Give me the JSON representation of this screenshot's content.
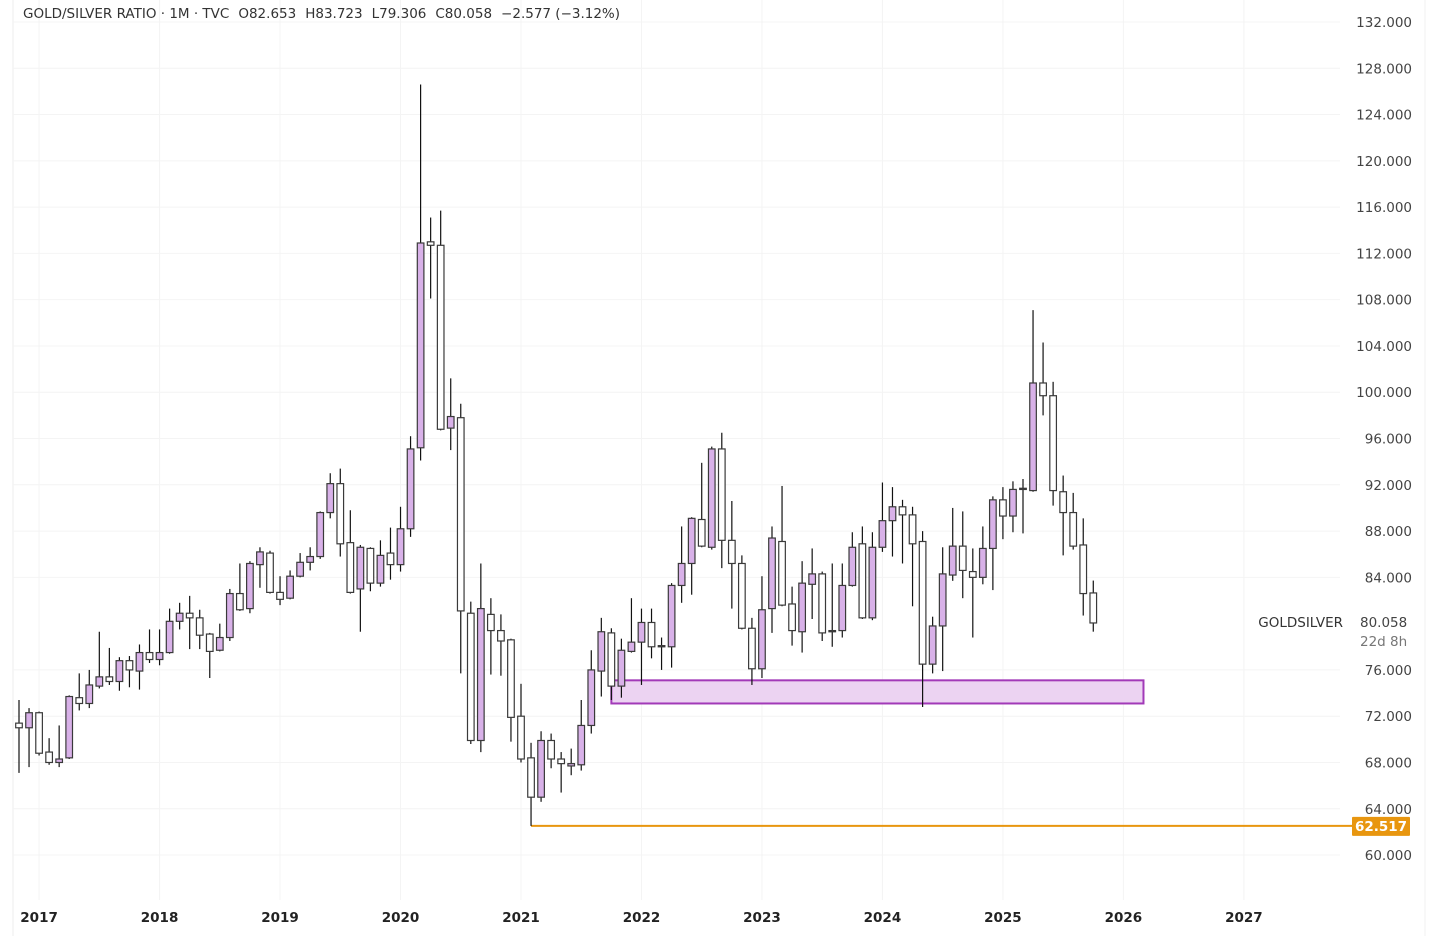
{
  "header": {
    "symbol": "GOLD/SILVER RATIO · 1M · TVC",
    "open": "O82.653",
    "high": "H83.723",
    "low": "L79.306",
    "close": "C80.058",
    "change": "−2.577 (−3.12%)"
  },
  "colors": {
    "up_fill": "#d8b1e8",
    "down_fill": "#ffffff",
    "outline": "#3a3a3a",
    "zone": "#a23ab8",
    "zone_fill": "#ecd3f2",
    "level": "#e8960f"
  },
  "chart_data": {
    "type": "candlestick",
    "title": "GOLD/SILVER RATIO · 1M · TVC",
    "interval": "1M",
    "first_month": "2016-11",
    "candle_format": [
      "open",
      "high",
      "low",
      "close"
    ],
    "candles": [
      [
        71.4,
        73.4,
        67.1,
        71.0
      ],
      [
        71.0,
        72.7,
        67.6,
        72.3
      ],
      [
        72.3,
        72.4,
        68.6,
        68.8
      ],
      [
        68.9,
        70.1,
        67.8,
        68.0
      ],
      [
        68.0,
        71.2,
        67.6,
        68.3
      ],
      [
        68.4,
        73.8,
        68.3,
        73.7
      ],
      [
        73.6,
        75.7,
        72.5,
        73.1
      ],
      [
        73.1,
        76.0,
        72.7,
        74.7
      ],
      [
        74.6,
        79.3,
        74.4,
        75.4
      ],
      [
        75.4,
        77.9,
        74.7,
        75.0
      ],
      [
        75.0,
        77.1,
        74.2,
        76.8
      ],
      [
        76.8,
        77.2,
        74.5,
        76.0
      ],
      [
        75.9,
        78.2,
        74.3,
        77.5
      ],
      [
        77.5,
        79.5,
        76.6,
        76.9
      ],
      [
        76.9,
        79.5,
        76.4,
        77.5
      ],
      [
        77.5,
        81.3,
        77.4,
        80.2
      ],
      [
        80.2,
        81.8,
        79.5,
        80.9
      ],
      [
        80.9,
        82.4,
        77.8,
        80.5
      ],
      [
        80.5,
        81.2,
        77.8,
        79.0
      ],
      [
        79.1,
        79.2,
        75.3,
        77.6
      ],
      [
        77.7,
        80.0,
        77.6,
        78.8
      ],
      [
        78.8,
        83.0,
        78.5,
        82.6
      ],
      [
        82.6,
        85.2,
        81.1,
        81.2
      ],
      [
        81.3,
        85.4,
        80.9,
        85.2
      ],
      [
        85.1,
        86.6,
        83.1,
        86.2
      ],
      [
        86.1,
        86.3,
        82.6,
        82.7
      ],
      [
        82.7,
        84.1,
        81.6,
        82.1
      ],
      [
        82.2,
        84.6,
        82.1,
        84.1
      ],
      [
        84.1,
        86.1,
        84.0,
        85.3
      ],
      [
        85.3,
        86.6,
        84.6,
        85.8
      ],
      [
        85.8,
        89.7,
        85.6,
        89.6
      ],
      [
        89.6,
        93.0,
        89.1,
        92.1
      ],
      [
        92.1,
        93.4,
        85.8,
        86.9
      ],
      [
        87.0,
        89.8,
        82.6,
        82.7
      ],
      [
        83.0,
        86.8,
        79.3,
        86.6
      ],
      [
        86.5,
        86.6,
        82.8,
        83.5
      ],
      [
        83.5,
        87.2,
        83.2,
        85.9
      ],
      [
        86.1,
        88.3,
        83.8,
        85.1
      ],
      [
        85.1,
        90.1,
        84.5,
        88.2
      ],
      [
        88.2,
        96.2,
        87.5,
        95.1
      ],
      [
        95.2,
        126.6,
        94.1,
        112.9
      ],
      [
        113.0,
        115.1,
        108.1,
        112.7
      ],
      [
        112.7,
        115.7,
        96.7,
        96.8
      ],
      [
        96.9,
        101.2,
        95.0,
        97.9
      ],
      [
        97.8,
        99.0,
        75.7,
        81.1
      ],
      [
        80.9,
        81.9,
        69.6,
        69.9
      ],
      [
        69.9,
        85.2,
        68.9,
        81.3
      ],
      [
        80.8,
        82.2,
        75.6,
        79.4
      ],
      [
        79.4,
        80.8,
        75.5,
        78.5
      ],
      [
        78.6,
        78.7,
        69.8,
        71.9
      ],
      [
        72.0,
        74.8,
        68.0,
        68.3
      ],
      [
        68.4,
        69.7,
        62.517,
        65.0
      ],
      [
        65.0,
        70.7,
        64.6,
        69.9
      ],
      [
        69.9,
        70.5,
        67.5,
        68.3
      ],
      [
        68.3,
        68.9,
        65.4,
        67.9
      ],
      [
        67.7,
        69.2,
        66.9,
        67.9
      ],
      [
        67.8,
        73.4,
        67.3,
        71.2
      ],
      [
        71.2,
        77.7,
        70.5,
        76.0
      ],
      [
        75.9,
        80.5,
        73.7,
        79.3
      ],
      [
        79.2,
        79.6,
        73.4,
        74.6
      ],
      [
        74.6,
        78.7,
        73.6,
        77.7
      ],
      [
        77.6,
        82.2,
        77.5,
        78.4
      ],
      [
        78.4,
        81.3,
        74.7,
        80.1
      ],
      [
        80.1,
        81.3,
        77.0,
        78.0
      ],
      [
        78.1,
        78.8,
        76.0,
        78.0
      ],
      [
        78.0,
        83.5,
        76.2,
        83.3
      ],
      [
        83.3,
        88.4,
        81.8,
        85.2
      ],
      [
        85.2,
        89.2,
        82.5,
        89.1
      ],
      [
        89.0,
        93.9,
        86.6,
        86.7
      ],
      [
        86.6,
        95.3,
        86.4,
        95.1
      ],
      [
        95.1,
        96.5,
        84.8,
        87.2
      ],
      [
        87.2,
        90.6,
        81.3,
        85.2
      ],
      [
        85.2,
        85.9,
        79.5,
        79.6
      ],
      [
        79.6,
        80.5,
        74.7,
        76.1
      ],
      [
        76.1,
        84.1,
        75.3,
        81.2
      ],
      [
        81.3,
        88.4,
        79.2,
        87.4
      ],
      [
        87.1,
        91.9,
        81.5,
        81.6
      ],
      [
        81.7,
        83.2,
        78.1,
        79.4
      ],
      [
        79.3,
        85.4,
        77.5,
        83.5
      ],
      [
        83.4,
        86.5,
        80.4,
        84.3
      ],
      [
        84.3,
        84.5,
        78.5,
        79.2
      ],
      [
        79.4,
        85.2,
        78.0,
        79.4
      ],
      [
        79.4,
        85.2,
        78.8,
        83.3
      ],
      [
        83.3,
        87.9,
        83.2,
        86.6
      ],
      [
        86.9,
        88.4,
        80.4,
        80.5
      ],
      [
        80.5,
        87.9,
        80.3,
        86.6
      ],
      [
        86.6,
        92.2,
        86.2,
        88.9
      ],
      [
        88.9,
        91.8,
        85.8,
        90.1
      ],
      [
        90.1,
        90.7,
        85.2,
        89.4
      ],
      [
        89.4,
        90.1,
        81.5,
        86.9
      ],
      [
        87.1,
        88.0,
        72.8,
        76.5
      ],
      [
        76.5,
        80.6,
        75.7,
        79.8
      ],
      [
        79.8,
        86.6,
        75.9,
        84.3
      ],
      [
        84.2,
        90.0,
        83.7,
        86.7
      ],
      [
        86.7,
        89.7,
        82.2,
        84.6
      ],
      [
        84.5,
        86.5,
        78.8,
        84.0
      ],
      [
        84.0,
        88.4,
        83.4,
        86.5
      ],
      [
        86.5,
        91.0,
        82.9,
        90.7
      ],
      [
        90.7,
        91.8,
        87.3,
        89.3
      ],
      [
        89.3,
        92.3,
        87.9,
        91.6
      ],
      [
        91.7,
        92.5,
        87.8,
        91.6
      ],
      [
        91.5,
        107.1,
        91.4,
        100.8
      ],
      [
        100.8,
        104.3,
        98.0,
        99.7
      ],
      [
        99.7,
        100.9,
        90.2,
        91.5
      ],
      [
        91.4,
        92.8,
        85.9,
        89.6
      ],
      [
        89.6,
        91.3,
        86.4,
        86.7
      ],
      [
        86.8,
        89.1,
        80.7,
        82.6
      ],
      [
        82.653,
        83.723,
        79.306,
        80.058
      ]
    ],
    "y_ticks": [
      "132.000",
      "128.000",
      "124.000",
      "120.000",
      "116.000",
      "112.000",
      "108.000",
      "104.000",
      "100.000",
      "96.000",
      "92.000",
      "88.000",
      "84.000",
      "76.000",
      "72.000",
      "68.000",
      "64.000",
      "60.000"
    ],
    "y_tick_values": [
      132,
      128,
      124,
      120,
      116,
      112,
      108,
      104,
      100,
      96,
      92,
      88,
      84,
      76,
      72,
      68,
      64,
      60
    ],
    "ylim": [
      60,
      132
    ],
    "x_ticks": [
      "2017",
      "2018",
      "2019",
      "2020",
      "2021",
      "2022",
      "2023",
      "2024",
      "2025",
      "2026",
      "2027"
    ],
    "x_tick_candle_index": [
      2,
      14,
      26,
      38,
      50,
      62,
      74,
      86,
      98,
      110,
      122
    ],
    "support_zone": {
      "from_index": 59,
      "to_index": 112,
      "low": 73.1,
      "high": 75.1
    },
    "level_line": {
      "from_index": 51,
      "value": 62.517,
      "label": "62.517"
    },
    "last_price": {
      "symbol": "GOLDSILVER",
      "value": "80.058",
      "countdown": "22d 8h",
      "numeric": 80.058
    }
  }
}
